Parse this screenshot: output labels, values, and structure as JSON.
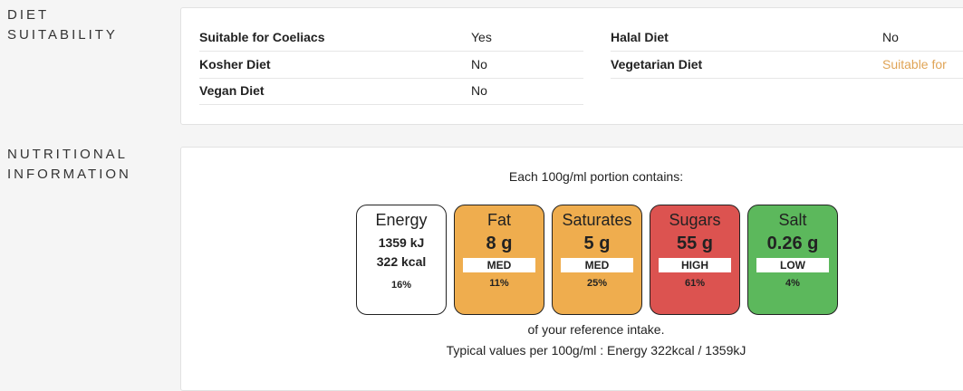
{
  "diet": {
    "title": "DIET SUITABILITY",
    "rows": [
      {
        "label": "Suitable for Coeliacs",
        "value": "Yes"
      },
      {
        "label": "Halal Diet",
        "value": "No"
      },
      {
        "label": "Kosher Diet",
        "value": "No"
      },
      {
        "label": "Vegetarian Diet",
        "value": "Suitable for"
      },
      {
        "label": "Vegan Diet",
        "value": "No"
      }
    ]
  },
  "nutrition": {
    "title": "NUTRITIONAL INFORMATION",
    "intro": "Each 100g/ml portion contains:",
    "items": [
      {
        "name": "Energy",
        "amount": "1359 kJ",
        "amount2": "322 kcal",
        "percent": "16%"
      },
      {
        "name": "Fat",
        "amount": "8 g",
        "level": "MED",
        "percent": "11%",
        "color": "#efad4e"
      },
      {
        "name": "Saturates",
        "amount": "5 g",
        "level": "MED",
        "percent": "25%",
        "color": "#efad4e"
      },
      {
        "name": "Sugars",
        "amount": "55 g",
        "level": "HIGH",
        "percent": "61%",
        "color": "#dc5350"
      },
      {
        "name": "Salt",
        "amount": "0.26 g",
        "level": "LOW",
        "percent": "4%",
        "color": "#5cb85c"
      }
    ],
    "footer1": "of your reference intake.",
    "footer2": "Typical values per 100g/ml : Energy 322kcal / 1359kJ"
  }
}
